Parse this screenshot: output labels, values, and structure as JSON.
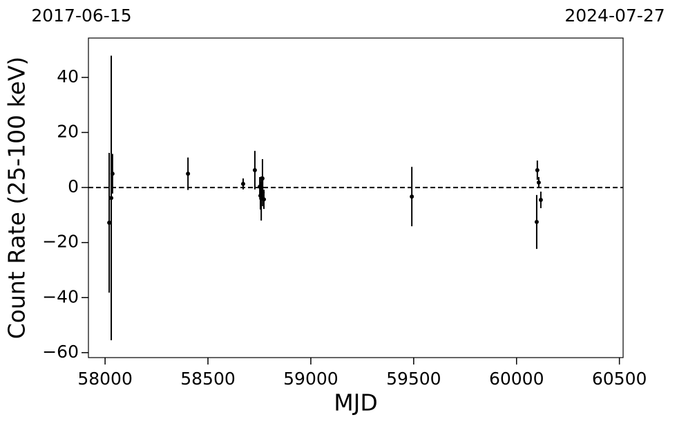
{
  "chart_data": {
    "type": "errorbar",
    "x_label": "MJD",
    "y_label": "Count Rate (25-100 keV)",
    "top_labels": [
      "2017-06-15",
      "2024-07-27"
    ],
    "x": [
      58020,
      58030,
      58036,
      58403,
      58671,
      58728,
      58752,
      58755,
      58759,
      58765,
      58766,
      58772,
      59491,
      60098,
      60101,
      60108,
      60118
    ],
    "values": [
      -12.8,
      -3.8,
      5.0,
      5.0,
      1.3,
      6.3,
      0.3,
      -3,
      -4,
      3.3,
      -1.8,
      -4.3,
      -3.3,
      -12.5,
      6.3,
      1.8,
      -4.5
    ],
    "errors": [
      25.4,
      51.7,
      7.2,
      5.9,
      2,
      7,
      3.5,
      5,
      8,
      7,
      5,
      3.5,
      10.8,
      9.8,
      3.5,
      2,
      3
    ],
    "color": "#000000",
    "hline": 0,
    "xlim": [
      57919,
      60518
    ],
    "ylim": [
      -61.8,
      54.3
    ],
    "xticks": [
      58000,
      58500,
      59000,
      59500,
      60000,
      60500
    ],
    "yticks": [
      {
        "value": -60,
        "label": "−60"
      },
      {
        "value": -40,
        "label": "−40"
      },
      {
        "value": -20,
        "label": "−20"
      },
      0,
      20,
      40
    ]
  }
}
